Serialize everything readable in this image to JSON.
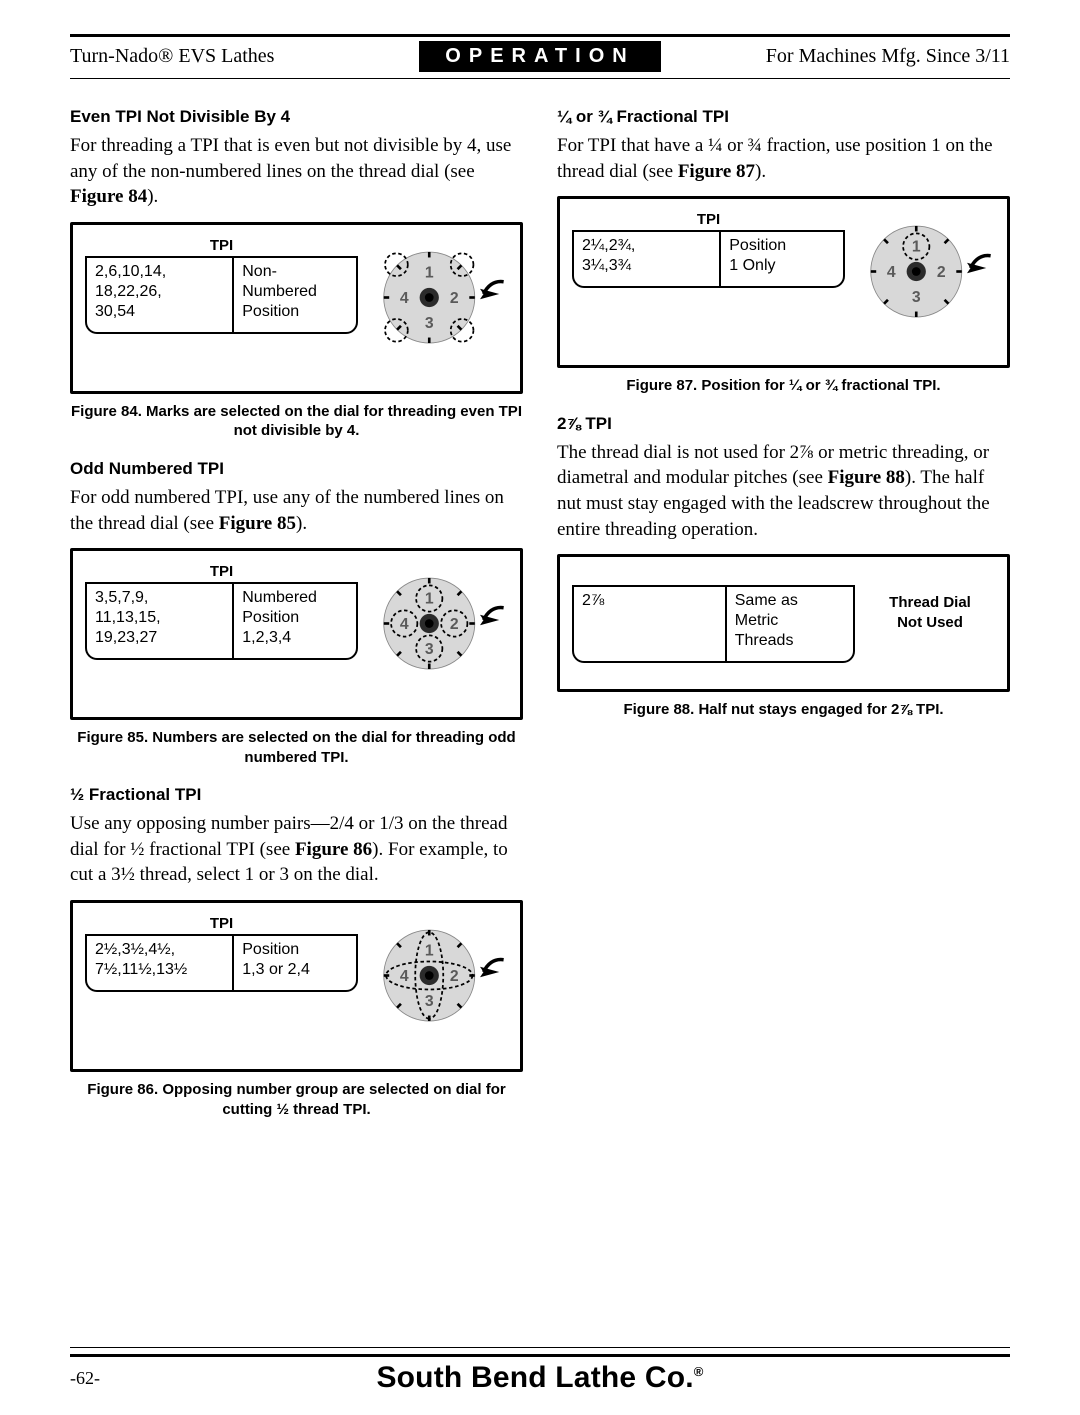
{
  "header": {
    "left": "Turn-Nado® EVS Lathes",
    "mid": "OPERATION",
    "right": "For Machines Mfg. Since 3/11"
  },
  "left_col": {
    "s1": {
      "head": "Even TPI Not Divisible By 4",
      "text_a": "For threading a TPI that is even but not divisible by 4, use any of the non-numbered lines on the thread dial (see ",
      "text_b": "Figure 84",
      "text_c": ").",
      "tpi_head": "TPI",
      "cell_left": "2,6,10,14,\n18,22,26,\n30,54",
      "cell_right": "Non-\nNumbered\nPosition",
      "cap": "Figure 84. Marks are selected on the dial for threading even TPI not divisible by 4.",
      "dial": {
        "highlight": "ticks"
      }
    },
    "s2": {
      "head": "Odd Numbered TPI",
      "text_a": "For odd numbered TPI, use any of the numbered lines on the thread dial (see ",
      "text_b": "Figure 85",
      "text_c": ").",
      "tpi_head": "TPI",
      "cell_left": "3,5,7,9,\n11,13,15,\n19,23,27",
      "cell_right": "Numbered\nPosition\n1,2,3,4",
      "cap": "Figure 85. Numbers are selected on the dial for threading odd numbered TPI.",
      "dial": {
        "highlight": "numbers"
      }
    },
    "s3": {
      "head": "½ Fractional TPI",
      "text_a": "Use any opposing number pairs—2/4 or 1/3 on the thread dial for ½ fractional TPI (see ",
      "text_b": "Figure 86",
      "text_c": "). For example, to cut a 3½ thread, select 1 or 3 on the dial.",
      "tpi_head": "TPI",
      "cell_left": "2½,3½,4½,\n7½,11½,13½",
      "cell_right": "Position\n1,3 or 2,4",
      "cap": "Figure 86. Opposing number group are selected on dial for cutting ½ thread TPI.",
      "dial": {
        "highlight": "cross"
      }
    }
  },
  "right_col": {
    "s4": {
      "head": "¼ or ¾ Fractional TPI",
      "text_a": "For TPI that have a ¼ or ¾ fraction, use position 1 on the thread dial (see ",
      "text_b": "Figure 87",
      "text_c": ").",
      "tpi_head": "TPI",
      "cell_left": "2¼,2¾,\n3¼,3¾",
      "cell_right": "Position\n1 Only",
      "cap": "Figure 87. Position for ¼ or ¾ fractional TPI.",
      "dial": {
        "highlight": "one"
      }
    },
    "s5": {
      "head": "2⅞ TPI",
      "text_a": "The thread dial is not used for 2⅞ or metric threading, or diametral and modular pitches (see ",
      "text_b": "Figure 88",
      "text_c": "). The half nut must stay engaged with the leadscrew throughout the entire threading operation.",
      "cell_left": "2⅞",
      "cell_right": "Same as\nMetric\nThreads",
      "notused": "Thread Dial\nNot Used",
      "cap": "Figure 88. Half nut stays engaged for 2⅞ TPI."
    }
  },
  "footer": {
    "page": "-62-",
    "brand": "South Bend Lathe Co.",
    "reg": "®"
  },
  "dial_style": {
    "disc_fill": "#d8d8d8",
    "hub_fill": "#2b2b2b",
    "tick_stroke": "#000000",
    "num_fill": "#5a5a5a",
    "highlight_stroke": "#000000",
    "arrow_fill": "#000000"
  }
}
